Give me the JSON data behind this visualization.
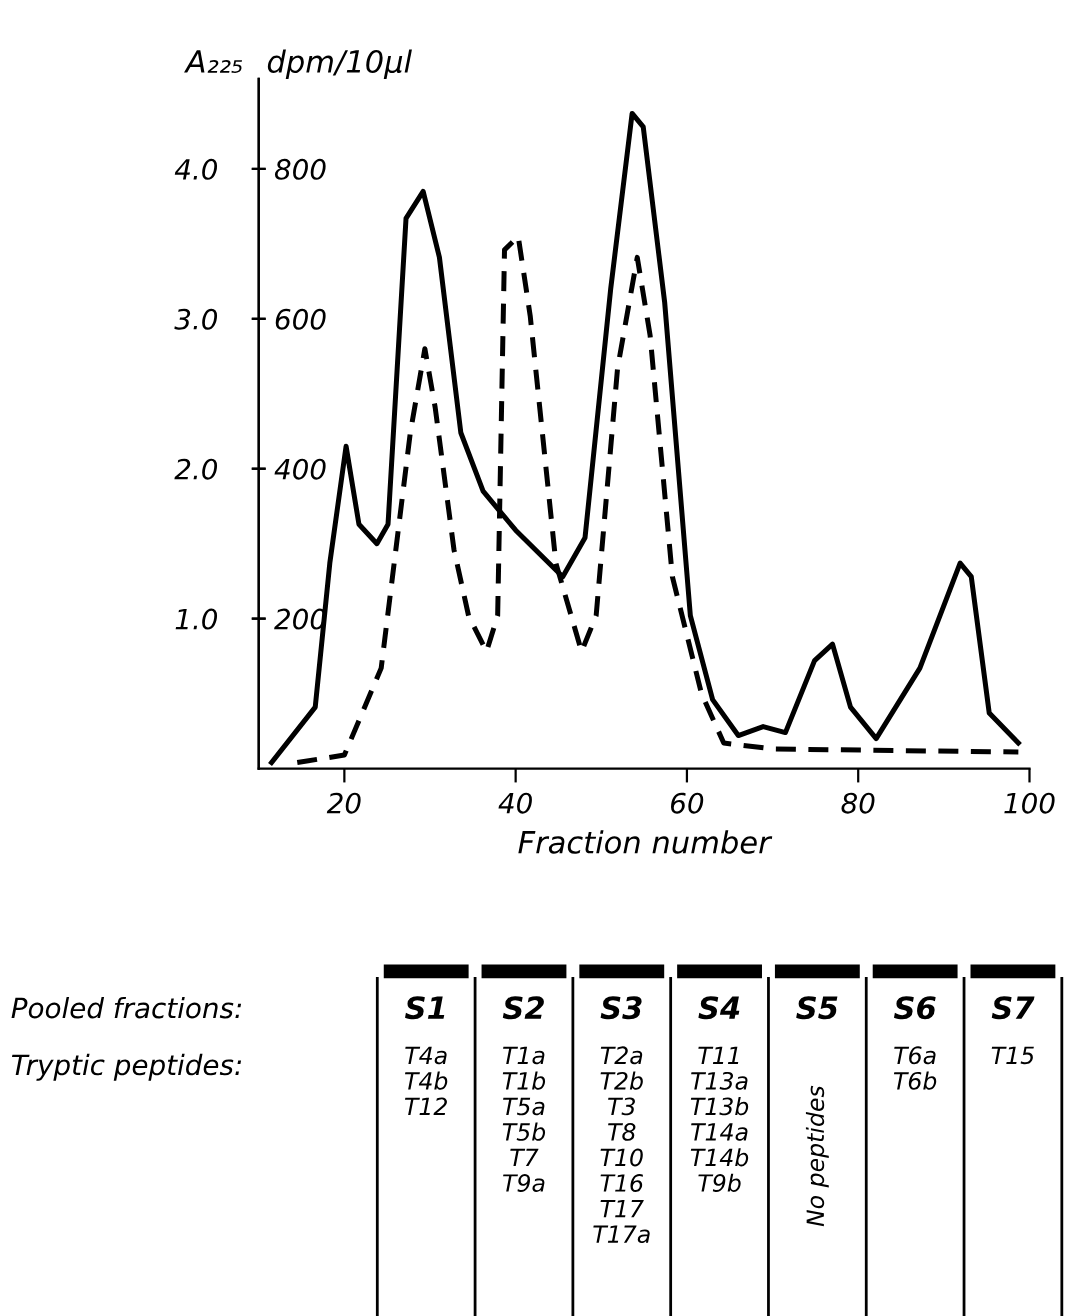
{
  "chart_data": [
    {
      "type": "line",
      "ylabel": "A₂₂₅",
      "y2label": "dpm/10µl",
      "xlabel": "Fraction number",
      "xlim": [
        10,
        100
      ],
      "xticks": [
        20,
        40,
        60,
        80,
        100
      ],
      "ylim": [
        0,
        4.6
      ],
      "yticks": [
        {
          "value": 1,
          "label": "1.0"
        },
        {
          "value": 2,
          "label": "2.0"
        },
        {
          "value": 3,
          "label": "3.0"
        },
        {
          "value": 4,
          "label": "4.0"
        }
      ],
      "y2lim": [
        0,
        920
      ],
      "y2ticks": [
        200,
        400,
        600,
        800
      ],
      "grid": false,
      "series": [
        {
          "color": "#000000",
          "line_style": "solid",
          "x": [
            11.5,
            16.6,
            18.3,
            20.2,
            21.7,
            23.8,
            25.1,
            27.2,
            29.2,
            31.1,
            33.6,
            36.2,
            40.0,
            45.5,
            48.1,
            51.1,
            53.6,
            54.9,
            57.4,
            60.4,
            63.0,
            66.0,
            68.9,
            71.5,
            74.9,
            77.0,
            79.1,
            82.1,
            87.2,
            91.9,
            93.2,
            95.3,
            98.7
          ],
          "values": [
            0.04,
            0.41,
            1.37,
            2.15,
            1.63,
            1.5,
            1.63,
            3.67,
            3.85,
            3.41,
            2.24,
            1.85,
            1.59,
            1.28,
            1.54,
            3.2,
            4.37,
            4.28,
            3.11,
            1.02,
            0.46,
            0.22,
            0.28,
            0.24,
            0.72,
            0.83,
            0.41,
            0.2,
            0.67,
            1.37,
            1.28,
            0.37,
            0.17
          ]
        },
        {
          "color": "#000000",
          "line_style": "dashed",
          "axis": "y2",
          "x": [
            14.5,
            20.0,
            24.3,
            27.7,
            29.4,
            30.6,
            32.8,
            34.5,
            36.6,
            37.9,
            38.7,
            40.3,
            41.7,
            44.7,
            47.7,
            49.4,
            51.9,
            54.2,
            55.7,
            58.3,
            61.7,
            64.3,
            70.2,
            98.7
          ],
          "values": [
            8,
            18,
            134,
            448,
            560,
            482,
            292,
            204,
            156,
            204,
            692,
            710,
            604,
            274,
            156,
            204,
            534,
            682,
            578,
            256,
            100,
            34,
            26,
            22
          ]
        }
      ]
    },
    {
      "type": "other",
      "categories": [
        "S1",
        "S2",
        "S3",
        "S4",
        "S5",
        "S6",
        "S7"
      ],
      "annotations": [
        "Pooled fractions:",
        "Tryptic peptides:",
        "T4a\nT4b\nT12",
        "T1a\nT1b\nT5a\nT5b\nT7\nT9a",
        "T2a\nT2b\nT3\nT8\nT10\nT16\nT17\nT17a",
        "T11\nT13a\nT13b\nT14a\nT14b\nT9b",
        "No peptides",
        "T6a\nT6b",
        "T15"
      ]
    }
  ]
}
